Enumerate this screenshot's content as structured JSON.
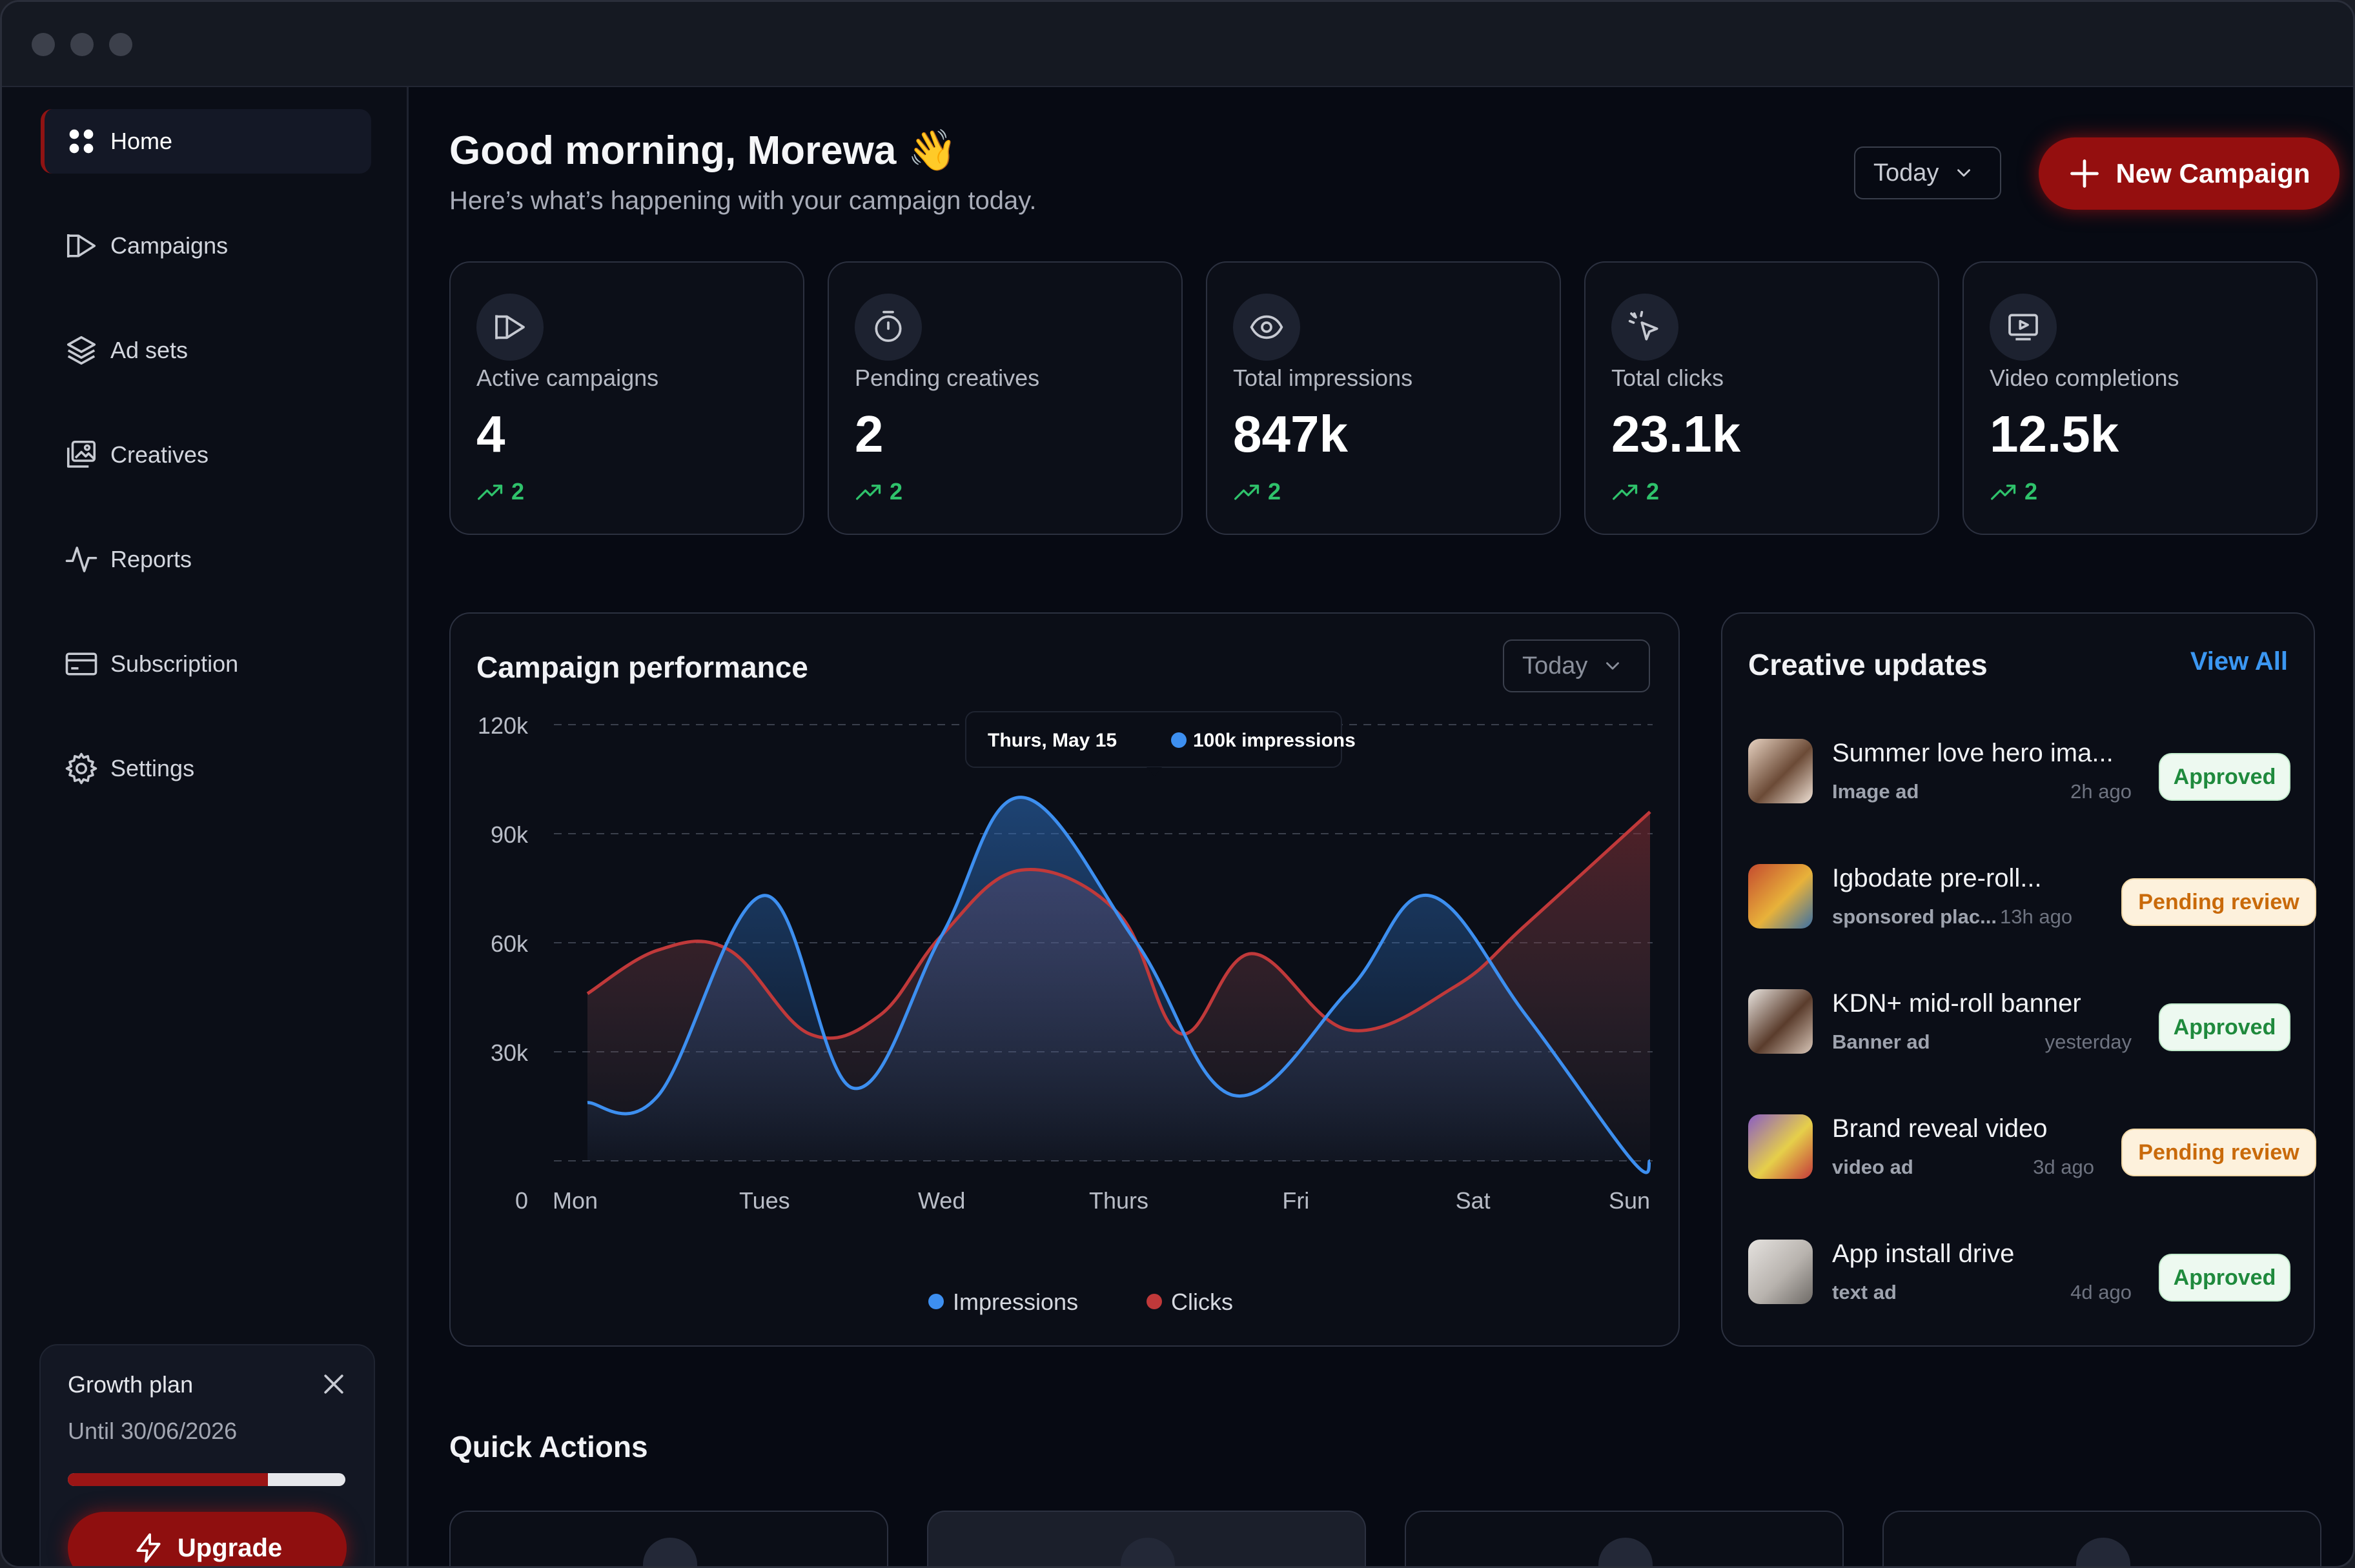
{
  "sidebar": {
    "items": [
      {
        "label": "Home",
        "icon": "grid-icon",
        "active": true
      },
      {
        "label": "Campaigns",
        "icon": "megaphone-icon"
      },
      {
        "label": "Ad sets",
        "icon": "layers-icon"
      },
      {
        "label": "Creatives",
        "icon": "images-icon"
      },
      {
        "label": "Reports",
        "icon": "activity-icon"
      },
      {
        "label": "Subscription",
        "icon": "card-icon"
      },
      {
        "label": "Settings",
        "icon": "gear-icon"
      }
    ],
    "plan": {
      "title": "Growth plan",
      "until": "Until 30/06/2026",
      "progress": 0.72,
      "upgrade_label": "Upgrade"
    }
  },
  "header": {
    "greeting": "Good morning, Morewa 👋",
    "subtitle": "Here’s what’s happening with your campaign today.",
    "period": "Today",
    "new_campaign_label": "New Campaign"
  },
  "stats": [
    {
      "label": "Active campaigns",
      "value": "4",
      "trend": "2",
      "icon": "megaphone-icon"
    },
    {
      "label": "Pending creatives",
      "value": "2",
      "trend": "2",
      "icon": "timer-icon"
    },
    {
      "label": "Total impressions",
      "value": "847k",
      "trend": "2",
      "icon": "eye-icon"
    },
    {
      "label": "Total clicks",
      "value": "23.1k",
      "trend": "2",
      "icon": "cursor-click-icon"
    },
    {
      "label": "Video completions",
      "value": "12.5k",
      "trend": "2",
      "icon": "video-icon"
    }
  ],
  "performance": {
    "title": "Campaign performance",
    "period": "Today",
    "tooltip": {
      "date": "Thurs, May 15",
      "value": "100k impressions"
    }
  },
  "chart_data": {
    "type": "area",
    "categories": [
      "Mon",
      "Tues",
      "Wed",
      "Thurs",
      "Fri",
      "Sat",
      "Sun"
    ],
    "ylim": [
      0,
      120000
    ],
    "yticks": [
      "0",
      "30k",
      "60k",
      "90k",
      "120k"
    ],
    "series": [
      {
        "name": "Impressions",
        "color": "#3d8ff0",
        "x": [
          0,
          0.4,
          1.0,
          1.5,
          2.0,
          2.45,
          3.1,
          3.65,
          4.3,
          4.75,
          5.3,
          5.9,
          6.0
        ],
        "values": [
          16000,
          18000,
          73000,
          20000,
          62000,
          100000,
          60000,
          18000,
          47000,
          73000,
          40000,
          0,
          0
        ]
      },
      {
        "name": "Clicks",
        "color": "#c0393a",
        "x": [
          0,
          0.4,
          0.8,
          1.25,
          1.65,
          2.0,
          2.45,
          3.0,
          3.35,
          3.75,
          4.3,
          4.9,
          5.3,
          6.0
        ],
        "values": [
          46000,
          58000,
          58000,
          35000,
          40000,
          62000,
          80000,
          68000,
          35000,
          57000,
          36000,
          48000,
          65000,
          96000
        ]
      }
    ],
    "legend": "bottom-center",
    "grid": true
  },
  "updates": {
    "title": "Creative updates",
    "view_all": "View All",
    "items": [
      {
        "title": "Summer love hero ima...",
        "type": "Image ad",
        "time": "2h ago",
        "status": "Approved",
        "kind": "approved"
      },
      {
        "title": "Igbodate pre-roll...",
        "type": "sponsored plac...",
        "time": "13h ago",
        "status": "Pending review",
        "kind": "pending"
      },
      {
        "title": "KDN+ mid-roll banner",
        "type": "Banner ad",
        "time": "yesterday",
        "status": "Approved",
        "kind": "approved"
      },
      {
        "title": "Brand reveal video",
        "type": "video ad",
        "time": "3d ago",
        "status": "Pending review",
        "kind": "pending"
      },
      {
        "title": "App install drive",
        "type": "text ad",
        "time": "4d ago",
        "status": "Approved",
        "kind": "approved"
      }
    ]
  },
  "quick_actions": {
    "title": "Quick Actions"
  }
}
